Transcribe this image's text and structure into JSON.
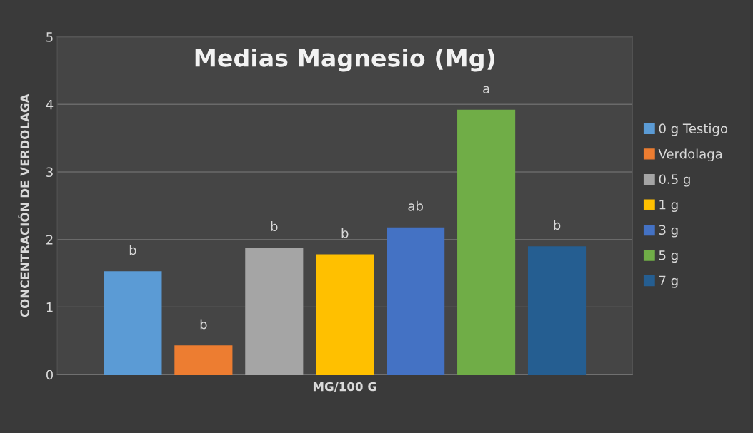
{
  "chart_data": {
    "type": "bar",
    "title": "Medias Magnesio (Mg)",
    "xlabel": "MG/100 G",
    "ylabel": "CONCENTRACIÓN DE VERDOLAGA",
    "categories": [
      null
    ],
    "series": [
      {
        "name": "0 g Testigo",
        "color": "#5b9bd5",
        "values": [
          1.53
        ],
        "value_labels": [
          "b"
        ]
      },
      {
        "name": "Verdolaga",
        "color": "#ed7d31",
        "values": [
          0.43
        ],
        "value_labels": [
          "b"
        ]
      },
      {
        "name": "0.5 g",
        "color": "#a5a5a5",
        "values": [
          1.88
        ],
        "value_labels": [
          "b"
        ]
      },
      {
        "name": "1 g",
        "color": "#ffc000",
        "values": [
          1.78
        ],
        "value_labels": [
          "b"
        ]
      },
      {
        "name": "3 g",
        "color": "#4472c4",
        "values": [
          2.18
        ],
        "value_labels": [
          "ab"
        ]
      },
      {
        "name": "5 g",
        "color": "#70ad47",
        "values": [
          3.92
        ],
        "value_labels": [
          "a"
        ]
      },
      {
        "name": "7 g",
        "color": "#255e91",
        "values": [
          1.9
        ],
        "value_labels": [
          "b"
        ]
      }
    ],
    "ylim": [
      0,
      5
    ],
    "yticks": [
      0,
      1,
      2,
      3,
      4,
      5
    ],
    "grid": "y",
    "legend": "right"
  }
}
